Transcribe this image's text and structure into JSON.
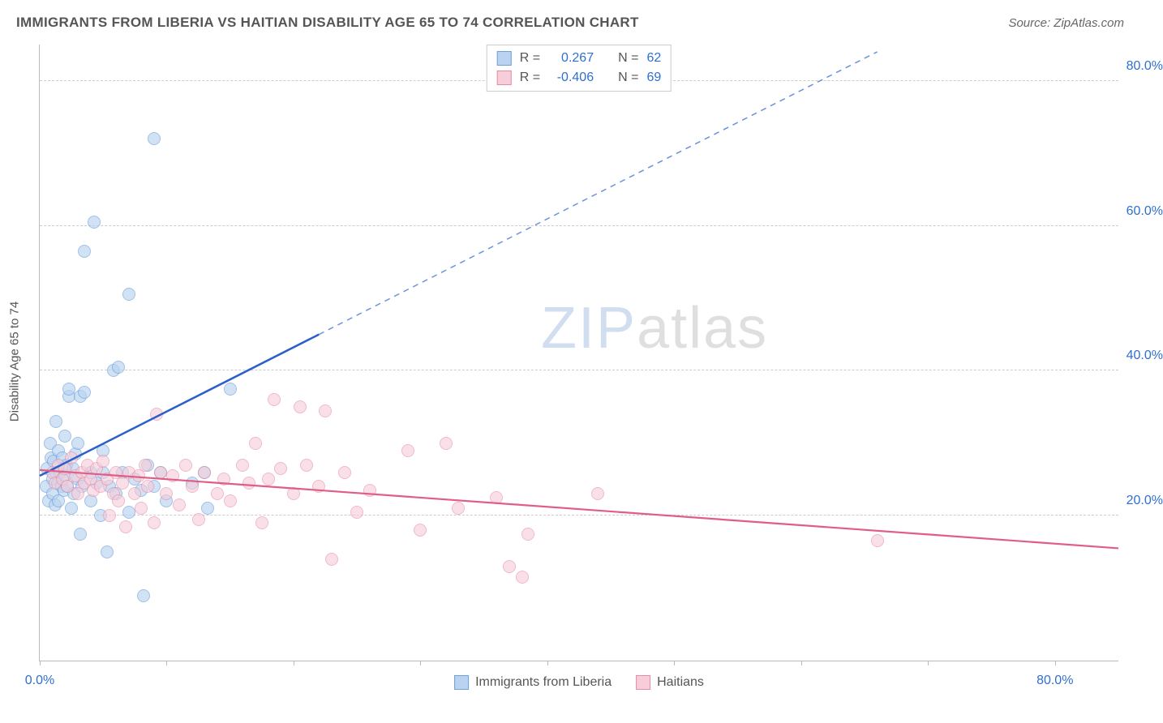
{
  "title": "IMMIGRANTS FROM LIBERIA VS HAITIAN DISABILITY AGE 65 TO 74 CORRELATION CHART",
  "source_label": "Source: ZipAtlas.com",
  "y_axis_title": "Disability Age 65 to 74",
  "watermark_a": "ZIP",
  "watermark_b": "atlas",
  "chart": {
    "type": "scatter",
    "background_color": "#ffffff",
    "grid_color": "#cccccc",
    "axis_color": "#bbbbbb",
    "tick_label_color": "#2f6fd0",
    "xlim": [
      0,
      85
    ],
    "ylim": [
      0,
      85
    ],
    "x_ticks": [
      0,
      10,
      20,
      30,
      40,
      50,
      60,
      70,
      80
    ],
    "y_grid": [
      20,
      40,
      60,
      80
    ],
    "x_labels": {
      "0": "0.0%",
      "80": "80.0%"
    },
    "y_labels": {
      "20": "20.0%",
      "40": "40.0%",
      "60": "60.0%",
      "80": "80.0%"
    },
    "marker_radius": 8,
    "marker_border_width": 1.5,
    "series": [
      {
        "name": "Immigrants from Liberia",
        "fill": "#b9d3f0",
        "stroke": "#6fa0dd",
        "fill_opacity": 0.65,
        "r_label": "R =",
        "r_value": "0.267",
        "n_label": "N =",
        "n_value": "62",
        "trend": {
          "solid": {
            "x1": 0,
            "y1": 25.5,
            "x2": 22,
            "y2": 45,
            "color": "#2b5fc9",
            "width": 2.5
          },
          "dashed": {
            "x1": 22,
            "y1": 45,
            "x2": 66,
            "y2": 84,
            "color": "#6a93da",
            "width": 1.5,
            "dash": "7,6"
          }
        },
        "points": [
          [
            0.5,
            24
          ],
          [
            0.6,
            26.5
          ],
          [
            0.7,
            22
          ],
          [
            0.8,
            30
          ],
          [
            0.9,
            28
          ],
          [
            1.0,
            25
          ],
          [
            1.0,
            23
          ],
          [
            1.1,
            27.5
          ],
          [
            1.2,
            21.5
          ],
          [
            1.3,
            26
          ],
          [
            1.3,
            33
          ],
          [
            1.4,
            24.5
          ],
          [
            1.5,
            29
          ],
          [
            1.5,
            22
          ],
          [
            1.6,
            26
          ],
          [
            1.7,
            24
          ],
          [
            1.8,
            28
          ],
          [
            1.9,
            23.5
          ],
          [
            2.0,
            25.5
          ],
          [
            2.0,
            31
          ],
          [
            2.1,
            27
          ],
          [
            2.2,
            24
          ],
          [
            2.3,
            36.5
          ],
          [
            2.3,
            37.5
          ],
          [
            2.5,
            21
          ],
          [
            2.6,
            26.5
          ],
          [
            2.7,
            23
          ],
          [
            2.8,
            28.5
          ],
          [
            3.0,
            25
          ],
          [
            3.0,
            30
          ],
          [
            3.2,
            17.5
          ],
          [
            3.2,
            36.5
          ],
          [
            3.3,
            24
          ],
          [
            3.5,
            37
          ],
          [
            3.5,
            56.5
          ],
          [
            4.0,
            26
          ],
          [
            4.0,
            22
          ],
          [
            4.3,
            60.5
          ],
          [
            4.5,
            24.5
          ],
          [
            4.8,
            20
          ],
          [
            5.0,
            26
          ],
          [
            5.0,
            29
          ],
          [
            5.3,
            15
          ],
          [
            5.5,
            24
          ],
          [
            5.8,
            40
          ],
          [
            6.0,
            23
          ],
          [
            6.2,
            40.5
          ],
          [
            6.5,
            26
          ],
          [
            7.0,
            20.5
          ],
          [
            7.0,
            50.5
          ],
          [
            7.5,
            25
          ],
          [
            8.0,
            23.5
          ],
          [
            8.2,
            9
          ],
          [
            8.5,
            27
          ],
          [
            9.0,
            24
          ],
          [
            9.0,
            72
          ],
          [
            9.5,
            26
          ],
          [
            10.0,
            22
          ],
          [
            12.0,
            24.5
          ],
          [
            13.0,
            26
          ],
          [
            13.2,
            21
          ],
          [
            15.0,
            37.5
          ]
        ]
      },
      {
        "name": "Haitians",
        "fill": "#f6cdd9",
        "stroke": "#e88ba6",
        "fill_opacity": 0.6,
        "r_label": "R =",
        "r_value": "-0.406",
        "n_label": "N =",
        "n_value": "69",
        "trend": {
          "solid": {
            "x1": 0,
            "y1": 26.3,
            "x2": 85,
            "y2": 15.5,
            "color": "#e05e86",
            "width": 2.2
          }
        },
        "points": [
          [
            1.0,
            26
          ],
          [
            1.2,
            24.5
          ],
          [
            1.5,
            27
          ],
          [
            1.8,
            25
          ],
          [
            2.0,
            26.5
          ],
          [
            2.2,
            24
          ],
          [
            2.5,
            28
          ],
          [
            2.8,
            25.5
          ],
          [
            3.0,
            23
          ],
          [
            3.3,
            26
          ],
          [
            3.5,
            24.5
          ],
          [
            3.8,
            27
          ],
          [
            4.0,
            25
          ],
          [
            4.2,
            23.5
          ],
          [
            4.5,
            26.5
          ],
          [
            4.8,
            24
          ],
          [
            5.0,
            27.5
          ],
          [
            5.3,
            25
          ],
          [
            5.5,
            20
          ],
          [
            5.8,
            23
          ],
          [
            6.0,
            26
          ],
          [
            6.2,
            22
          ],
          [
            6.5,
            24.5
          ],
          [
            6.8,
            18.5
          ],
          [
            7.0,
            26
          ],
          [
            7.5,
            23
          ],
          [
            7.8,
            25.5
          ],
          [
            8.0,
            21
          ],
          [
            8.3,
            27
          ],
          [
            8.5,
            24
          ],
          [
            9.0,
            19
          ],
          [
            9.2,
            34
          ],
          [
            9.5,
            26
          ],
          [
            10.0,
            23
          ],
          [
            10.5,
            25.5
          ],
          [
            11.0,
            21.5
          ],
          [
            11.5,
            27
          ],
          [
            12.0,
            24
          ],
          [
            12.5,
            19.5
          ],
          [
            13.0,
            26
          ],
          [
            14.0,
            23
          ],
          [
            14.5,
            25
          ],
          [
            15.0,
            22
          ],
          [
            16.0,
            27
          ],
          [
            16.5,
            24.5
          ],
          [
            17.0,
            30
          ],
          [
            17.5,
            19
          ],
          [
            18.0,
            25
          ],
          [
            18.5,
            36
          ],
          [
            19.0,
            26.5
          ],
          [
            20.0,
            23
          ],
          [
            20.5,
            35
          ],
          [
            21.0,
            27
          ],
          [
            22.0,
            24
          ],
          [
            22.5,
            34.5
          ],
          [
            23.0,
            14
          ],
          [
            24.0,
            26
          ],
          [
            25.0,
            20.5
          ],
          [
            26.0,
            23.5
          ],
          [
            29.0,
            29
          ],
          [
            30.0,
            18
          ],
          [
            32.0,
            30
          ],
          [
            33.0,
            21
          ],
          [
            36.0,
            22.5
          ],
          [
            37.0,
            13
          ],
          [
            38.0,
            11.5
          ],
          [
            38.5,
            17.5
          ],
          [
            44.0,
            23
          ],
          [
            66.0,
            16.5
          ]
        ]
      }
    ]
  }
}
